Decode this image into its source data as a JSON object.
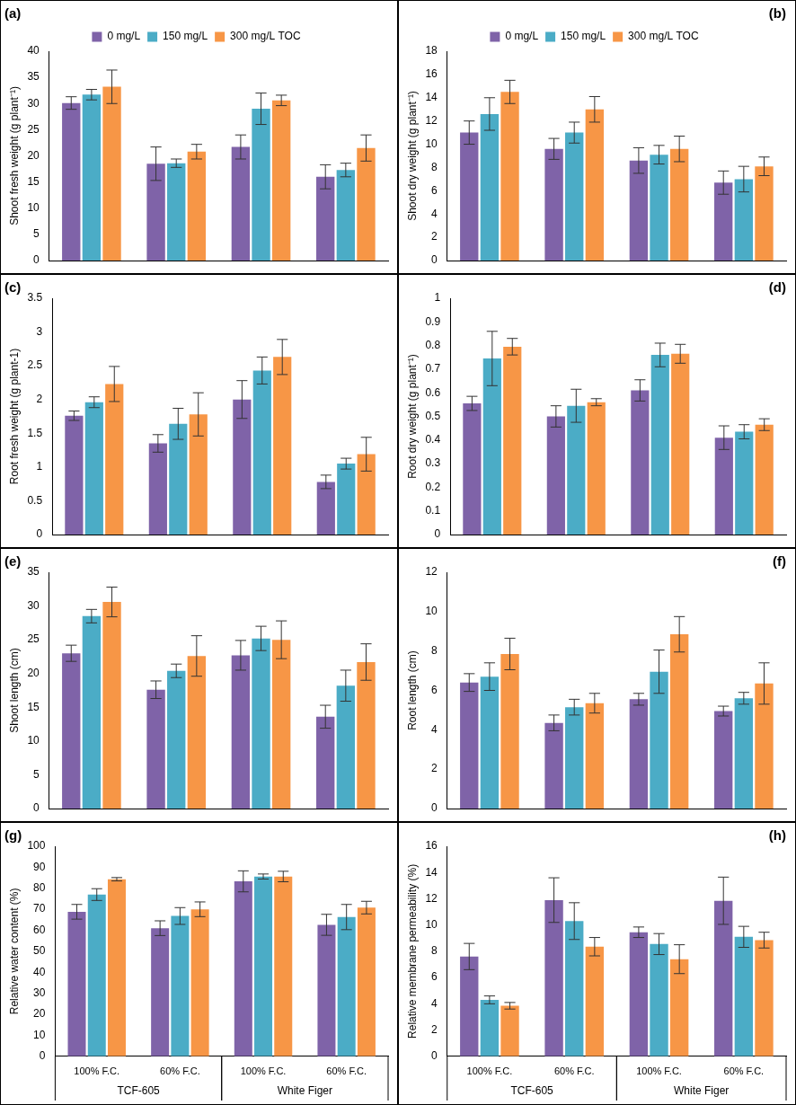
{
  "chart_data": [
    {
      "type": "bar",
      "title": "(a)",
      "y_label": "Shoot fresh weight (g plant⁻¹)",
      "categories": [
        "100% F.C.",
        "60% F.C.",
        "100% F.C.",
        "60% F.C."
      ],
      "series": [
        {
          "name": "0 mg/L",
          "color": "#7f63a8",
          "values": [
            30.1,
            18.5,
            21.7,
            16.0
          ],
          "errors": [
            1.2,
            3.2,
            2.3,
            2.3
          ]
        },
        {
          "name": "150 mg/L",
          "color": "#4bacc6",
          "values": [
            31.7,
            18.6,
            29.0,
            17.3
          ],
          "errors": [
            1.0,
            0.8,
            3.0,
            1.3
          ]
        },
        {
          "name": "300 mg/L TOC",
          "color": "#f79646",
          "values": [
            33.2,
            20.8,
            30.6,
            21.5
          ],
          "errors": [
            3.2,
            1.4,
            1.0,
            2.5
          ]
        }
      ],
      "ylim": [
        0,
        40
      ],
      "yticks": [
        0,
        5,
        10,
        15,
        20,
        25,
        30,
        35,
        40
      ],
      "grid": false,
      "legend": "top",
      "tick_labels": "y"
    },
    {
      "type": "bar",
      "title": "(b)",
      "y_label": "Shoot dry weight (g plant⁻¹)",
      "categories": [
        "100% F.C.",
        "60% F.C.",
        "100% F.C.",
        "60% F.C."
      ],
      "series": [
        {
          "name": "0 mg/L",
          "color": "#7f63a8",
          "values": [
            11.0,
            9.6,
            8.6,
            6.7
          ],
          "errors": [
            1.0,
            0.9,
            1.1,
            1.0
          ]
        },
        {
          "name": "150 mg/L",
          "color": "#4bacc6",
          "values": [
            12.6,
            11.0,
            9.1,
            7.0
          ],
          "errors": [
            1.4,
            0.9,
            0.8,
            1.1
          ]
        },
        {
          "name": "300 mg/L TOC",
          "color": "#f79646",
          "values": [
            14.5,
            13.0,
            9.6,
            8.1
          ],
          "errors": [
            1.0,
            1.1,
            1.1,
            0.8
          ]
        }
      ],
      "ylim": [
        0,
        18
      ],
      "yticks": [
        0,
        2,
        4,
        6,
        8,
        10,
        12,
        14,
        16,
        18
      ],
      "grid": false,
      "legend": "top",
      "tick_labels": "y"
    },
    {
      "type": "bar",
      "title": "(c)",
      "y_label": "Root fresh weight (g plant-1)",
      "categories": [
        "100% F.C.",
        "60% F.C.",
        "100% F.C.",
        "60% F.C."
      ],
      "series": [
        {
          "name": "0 mg/L",
          "color": "#7f63a8",
          "values": [
            1.76,
            1.35,
            2.0,
            0.78
          ],
          "errors": [
            0.07,
            0.13,
            0.28,
            0.1
          ]
        },
        {
          "name": "150 mg/L",
          "color": "#4bacc6",
          "values": [
            1.96,
            1.64,
            2.43,
            1.05
          ],
          "errors": [
            0.08,
            0.23,
            0.2,
            0.08
          ]
        },
        {
          "name": "300 mg/L TOC",
          "color": "#f79646",
          "values": [
            2.23,
            1.78,
            2.63,
            1.19
          ],
          "errors": [
            0.26,
            0.32,
            0.26,
            0.25
          ]
        }
      ],
      "ylim": [
        0,
        3.5
      ],
      "yticks": [
        0,
        0.5,
        1,
        1.5,
        2,
        2.5,
        3,
        3.5
      ],
      "grid": false,
      "tick_labels": "y"
    },
    {
      "type": "bar",
      "title": "(d)",
      "y_label": "Root dry weight (g plant⁻¹)",
      "categories": [
        "100% F.C.",
        "60% F.C.",
        "100% F.C.",
        "60% F.C."
      ],
      "series": [
        {
          "name": "0 mg/L",
          "color": "#7f63a8",
          "values": [
            0.555,
            0.5,
            0.61,
            0.41
          ],
          "errors": [
            0.03,
            0.045,
            0.045,
            0.05
          ]
        },
        {
          "name": "150 mg/L",
          "color": "#4bacc6",
          "values": [
            0.745,
            0.545,
            0.76,
            0.435
          ],
          "errors": [
            0.115,
            0.07,
            0.05,
            0.03
          ]
        },
        {
          "name": "300 mg/L TOC",
          "color": "#f79646",
          "values": [
            0.795,
            0.56,
            0.765,
            0.465
          ],
          "errors": [
            0.035,
            0.015,
            0.04,
            0.025
          ]
        }
      ],
      "ylim": [
        0,
        1
      ],
      "yticks": [
        0,
        0.1,
        0.2,
        0.3,
        0.4,
        0.5,
        0.6,
        0.7,
        0.8,
        0.9,
        1
      ],
      "grid": false,
      "tick_labels": "y"
    },
    {
      "type": "bar",
      "title": "(e)",
      "y_label": "Shoot length (cm)",
      "categories": [
        "100% F.C.",
        "60% F.C.",
        "100% F.C.",
        "60% F.C."
      ],
      "series": [
        {
          "name": "0 mg/L",
          "color": "#7f63a8",
          "values": [
            23.0,
            17.6,
            22.7,
            13.6
          ],
          "errors": [
            1.2,
            1.3,
            2.2,
            1.7
          ]
        },
        {
          "name": "150 mg/L",
          "color": "#4bacc6",
          "values": [
            28.5,
            20.4,
            25.2,
            18.2
          ],
          "errors": [
            1.0,
            1.0,
            1.8,
            2.3
          ]
        },
        {
          "name": "300 mg/L TOC",
          "color": "#f79646",
          "values": [
            30.6,
            22.6,
            25.0,
            21.7
          ],
          "errors": [
            2.2,
            3.0,
            2.8,
            2.7
          ]
        }
      ],
      "ylim": [
        0,
        35
      ],
      "yticks": [
        0,
        5,
        10,
        15,
        20,
        25,
        30,
        35
      ],
      "grid": false,
      "tick_labels": "y"
    },
    {
      "type": "bar",
      "title": "(f)",
      "y_label": "Root length (cm)",
      "categories": [
        "100% F.C.",
        "60% F.C.",
        "100% F.C.",
        "60% F.C."
      ],
      "series": [
        {
          "name": "0 mg/L",
          "color": "#7f63a8",
          "values": [
            6.4,
            4.35,
            5.55,
            4.95
          ],
          "errors": [
            0.45,
            0.4,
            0.3,
            0.25
          ]
        },
        {
          "name": "150 mg/L",
          "color": "#4bacc6",
          "values": [
            6.7,
            5.15,
            6.95,
            5.6
          ],
          "errors": [
            0.7,
            0.4,
            1.1,
            0.3
          ]
        },
        {
          "name": "300 mg/L TOC",
          "color": "#f79646",
          "values": [
            7.85,
            5.35,
            8.85,
            6.35
          ],
          "errors": [
            0.8,
            0.5,
            0.9,
            1.05
          ]
        }
      ],
      "ylim": [
        0,
        12
      ],
      "yticks": [
        0,
        2,
        4,
        6,
        8,
        10,
        12
      ],
      "grid": false,
      "tick_labels": "y"
    },
    {
      "type": "bar",
      "title": "(g)",
      "y_label": "Relative water content (%)",
      "categories": [
        "100% F.C.",
        "60% F.C.",
        "100% F.C.",
        "60% F.C."
      ],
      "groups": [
        "TCF-605",
        "White Figer"
      ],
      "series": [
        {
          "name": "0 mg/L",
          "color": "#7f63a8",
          "values": [
            68.8,
            61.0,
            83.3,
            62.6
          ],
          "errors": [
            3.5,
            3.5,
            5.0,
            5.0
          ]
        },
        {
          "name": "150 mg/L",
          "color": "#4bacc6",
          "values": [
            77.0,
            66.8,
            85.6,
            66.3
          ],
          "errors": [
            2.8,
            4.0,
            1.2,
            6.0
          ]
        },
        {
          "name": "300 mg/L TOC",
          "color": "#f79646",
          "values": [
            84.3,
            70.0,
            85.6,
            70.8
          ],
          "errors": [
            0.8,
            3.5,
            2.5,
            3.0
          ]
        }
      ],
      "ylim": [
        0,
        100
      ],
      "yticks": [
        0,
        10,
        20,
        30,
        40,
        50,
        60,
        70,
        80,
        90,
        100
      ],
      "grid": false
    },
    {
      "type": "bar",
      "title": "(h)",
      "y_label": "Relative membrane permeability (%)",
      "categories": [
        "100% F.C.",
        "60% F.C.",
        "100% F.C.",
        "60% F.C."
      ],
      "groups": [
        "TCF-605",
        "White Figer"
      ],
      "series": [
        {
          "name": "0 mg/L",
          "color": "#7f63a8",
          "values": [
            7.6,
            11.9,
            9.45,
            11.85
          ],
          "errors": [
            1.0,
            1.7,
            0.4,
            1.8
          ]
        },
        {
          "name": "150 mg/L",
          "color": "#4bacc6",
          "values": [
            4.3,
            10.3,
            8.55,
            9.1
          ],
          "errors": [
            0.3,
            1.4,
            0.8,
            0.8
          ]
        },
        {
          "name": "300 mg/L TOC",
          "color": "#f79646",
          "values": [
            3.85,
            8.35,
            7.4,
            8.85
          ],
          "errors": [
            0.25,
            0.7,
            1.1,
            0.6
          ]
        }
      ],
      "ylim": [
        0,
        16
      ],
      "yticks": [
        0,
        2,
        4,
        6,
        8,
        10,
        12,
        14,
        16
      ],
      "grid": false
    }
  ]
}
